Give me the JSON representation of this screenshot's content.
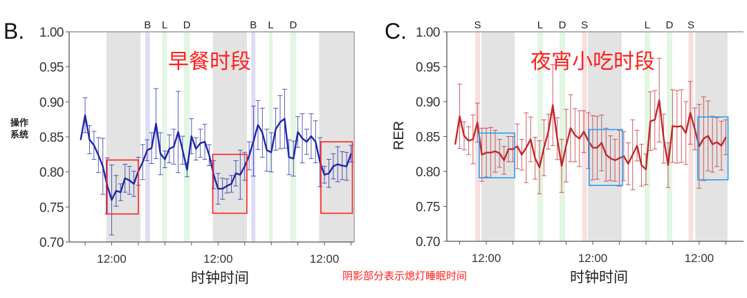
{
  "footnote": "阴影部分表示熄灯睡眠时间",
  "colors": {
    "dark_shade": "#e3e3e3",
    "breakfast": "#dcdcf6",
    "lunch_dinner": "#e2f6e2",
    "snack": "#f8e0e0",
    "blue_series": "#1f25a8",
    "red_series": "#c0282c",
    "red_box": "#ff2020",
    "blue_box": "#2a9df4"
  },
  "chart_data": [
    {
      "type": "line",
      "panel_label": "B.",
      "annotation_title": "早餐时段",
      "ylabel": "操作系统",
      "xlabel": "时钟时间",
      "ylim": [
        0.7,
        1.0
      ],
      "yticks": [
        "1.00",
        "0.95",
        "0.90",
        "0.85",
        "0.80",
        "0.75",
        "0.70"
      ],
      "xlim": [
        2.4,
        66.7
      ],
      "x_tick_hours": [
        6,
        12,
        18,
        24,
        30,
        36,
        42,
        48,
        54,
        60,
        66
      ],
      "x_tick_labels": [
        {
          "hour": 12,
          "label": "12:00"
        },
        {
          "hour": 36,
          "label": "12:00"
        },
        {
          "hour": 60,
          "label": "12:00"
        }
      ],
      "x_start_hour": 5,
      "dark_periods": [
        [
          10.8,
          18.5
        ],
        [
          34.8,
          42.5
        ],
        [
          58.8,
          66.5
        ]
      ],
      "meal_bands": [
        {
          "label": "B",
          "range": [
            19.6,
            20.6
          ],
          "kind": "breakfast"
        },
        {
          "label": "L",
          "range": [
            23.4,
            24.5
          ],
          "kind": "lunch_dinner"
        },
        {
          "label": "D",
          "range": [
            28.3,
            29.6
          ],
          "kind": "lunch_dinner"
        },
        {
          "label": "B",
          "range": [
            43.5,
            44.4
          ],
          "kind": "breakfast"
        },
        {
          "label": "L",
          "range": [
            47.5,
            48.3
          ],
          "kind": "lunch_dinner"
        },
        {
          "label": "D",
          "range": [
            52.3,
            53.6
          ],
          "kind": "lunch_dinner"
        }
      ],
      "highlight_boxes": [
        {
          "x": [
            10.8,
            18.0
          ],
          "y": [
            0.74,
            0.817
          ]
        },
        {
          "x": [
            34.8,
            42.5
          ],
          "y": [
            0.741,
            0.825
          ]
        },
        {
          "x": [
            59.2,
            66.3
          ],
          "y": [
            0.741,
            0.843
          ]
        }
      ],
      "series": [
        {
          "color_key": "blue_series",
          "values": [
            0.846,
            0.881,
            0.846,
            0.838,
            0.824,
            0.808,
            0.78,
            0.76,
            0.773,
            0.771,
            0.791,
            0.788,
            0.783,
            0.801,
            0.814,
            0.831,
            0.834,
            0.869,
            0.826,
            0.818,
            0.833,
            0.836,
            0.857,
            0.831,
            0.803,
            0.851,
            0.833,
            0.841,
            0.843,
            0.824,
            0.796,
            0.776,
            0.776,
            0.78,
            0.783,
            0.798,
            0.796,
            0.808,
            0.823,
            0.844,
            0.867,
            0.856,
            0.831,
            0.828,
            0.861,
            0.871,
            0.876,
            0.821,
            0.819,
            0.857,
            0.848,
            0.843,
            0.851,
            0.843,
            0.814,
            0.796,
            0.798,
            0.808,
            0.811,
            0.809,
            0.808,
            0.826
          ],
          "errors": [
            0.0,
            0.025,
            0.02,
            0.02,
            0.025,
            0.04,
            0.04,
            0.05,
            0.022,
            0.012,
            0.02,
            0.02,
            0.018,
            0.02,
            0.025,
            0.015,
            0.022,
            0.05,
            0.03,
            0.012,
            0.02,
            0.025,
            0.058,
            0.02,
            0.01,
            0.025,
            0.016,
            0.02,
            0.025,
            0.015,
            0.02,
            0.022,
            0.015,
            0.01,
            0.012,
            0.018,
            0.035,
            0.02,
            0.02,
            0.05,
            0.035,
            0.035,
            0.03,
            0.028,
            0.03,
            0.038,
            0.042,
            0.025,
            0.025,
            0.022,
            0.035,
            0.018,
            0.032,
            0.03,
            0.035,
            0.012,
            0.02,
            0.018,
            0.025,
            0.02,
            0.02,
            0.012
          ]
        }
      ]
    },
    {
      "type": "line",
      "panel_label": "C.",
      "annotation_title": "夜宵小吃时段",
      "ylabel": "RER",
      "xlabel": "时钟时间",
      "ylim": [
        0.7,
        1.0
      ],
      "yticks": [
        "1.00",
        "0.95",
        "0.90",
        "0.85",
        "0.80",
        "0.75",
        "0.70"
      ],
      "xlim": [
        3.1,
        70.0
      ],
      "x_tick_hours": [
        6,
        12,
        18,
        24,
        30,
        36,
        42,
        48,
        54,
        60,
        66
      ],
      "x_tick_labels": [
        {
          "hour": 12,
          "label": "12:00"
        },
        {
          "hour": 36,
          "label": "12:00"
        },
        {
          "hour": 60,
          "label": "12:00"
        }
      ],
      "x_start_hour": 5,
      "dark_periods": [
        [
          10.9,
          18.4
        ],
        [
          34.9,
          42.5
        ],
        [
          59.1,
          66.4
        ]
      ],
      "meal_bands": [
        {
          "label": "S",
          "range": [
            9.5,
            10.6
          ],
          "kind": "snack"
        },
        {
          "label": "L",
          "range": [
            23.5,
            24.8
          ],
          "kind": "lunch_dinner"
        },
        {
          "label": "D",
          "range": [
            28.5,
            29.8
          ],
          "kind": "lunch_dinner"
        },
        {
          "label": "S",
          "range": [
            33.6,
            34.7
          ],
          "kind": "snack"
        },
        {
          "label": "L",
          "range": [
            47.7,
            48.9
          ],
          "kind": "lunch_dinner"
        },
        {
          "label": "D",
          "range": [
            52.7,
            53.9
          ],
          "kind": "lunch_dinner"
        },
        {
          "label": "S",
          "range": [
            57.6,
            58.7
          ],
          "kind": "snack"
        }
      ],
      "highlight_boxes": [
        {
          "x": [
            10.4,
            18.4
          ],
          "y": [
            0.791,
            0.855
          ]
        },
        {
          "x": [
            35.2,
            42.7
          ],
          "y": [
            0.78,
            0.86
          ]
        },
        {
          "x": [
            59.7,
            66.5
          ],
          "y": [
            0.788,
            0.878
          ]
        }
      ],
      "series": [
        {
          "color_key": "red_series",
          "values": [
            0.839,
            0.879,
            0.851,
            0.844,
            0.846,
            0.87,
            0.824,
            0.827,
            0.827,
            0.829,
            0.826,
            0.816,
            0.832,
            0.832,
            0.836,
            0.824,
            0.834,
            0.846,
            0.819,
            0.806,
            0.834,
            0.857,
            0.895,
            0.847,
            0.808,
            0.837,
            0.862,
            0.852,
            0.847,
            0.857,
            0.844,
            0.834,
            0.834,
            0.841,
            0.824,
            0.819,
            0.816,
            0.819,
            0.822,
            0.811,
            0.824,
            0.837,
            0.809,
            0.803,
            0.872,
            0.874,
            0.902,
            0.847,
            0.809,
            0.865,
            0.864,
            0.865,
            0.855,
            0.884,
            0.861,
            0.836,
            0.847,
            0.851,
            0.839,
            0.842,
            0.837,
            0.849
          ],
          "errors": [
            0.0,
            0.046,
            0.02,
            0.02,
            0.035,
            0.028,
            0.038,
            0.035,
            0.036,
            0.03,
            0.02,
            0.02,
            0.018,
            0.018,
            0.032,
            0.022,
            0.05,
            0.032,
            0.03,
            0.038,
            0.04,
            0.025,
            0.058,
            0.03,
            0.038,
            0.052,
            0.048,
            0.038,
            0.04,
            0.03,
            0.04,
            0.046,
            0.045,
            0.04,
            0.038,
            0.032,
            0.03,
            0.04,
            0.035,
            0.03,
            0.05,
            0.022,
            0.03,
            0.022,
            0.042,
            0.042,
            0.06,
            0.035,
            0.032,
            0.052,
            0.052,
            0.052,
            0.045,
            0.045,
            0.03,
            0.06,
            0.06,
            0.05,
            0.04,
            0.035,
            0.035,
            0.025
          ]
        }
      ]
    }
  ]
}
